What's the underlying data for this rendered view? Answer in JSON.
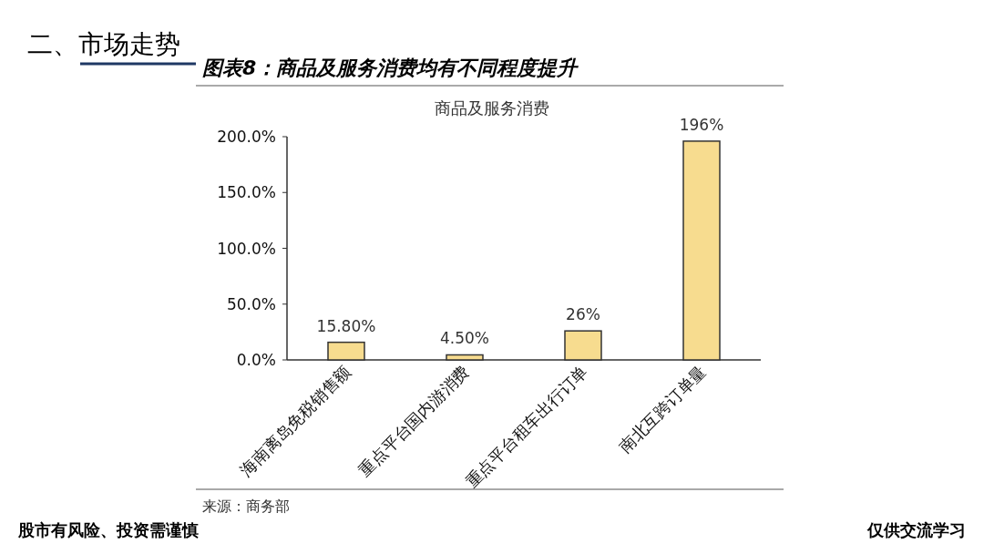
{
  "chart_data": {
    "type": "bar",
    "title": "图表8：商品及服务消费均有不同程度提升",
    "subtitle": "商品及服务消费",
    "categories": [
      "海南离岛免税销售额",
      "重点平台国内游消费",
      "重点平台租车出行订单",
      "南北互跨订单量"
    ],
    "values": [
      15.8,
      4.5,
      26,
      196
    ],
    "value_labels": [
      "15.80%",
      "4.50%",
      "26%",
      "196%"
    ],
    "color": "#f7dc8f",
    "ylim": [
      0,
      200
    ],
    "yticks": [
      {
        "value": 0,
        "label": "0.0%"
      },
      {
        "value": 50,
        "label": "50.0%"
      },
      {
        "value": 100,
        "label": "100.0%"
      },
      {
        "value": 150,
        "label": "150.0%"
      },
      {
        "value": 200,
        "label": "200.0%"
      }
    ],
    "annotations": [
      "二、市场走势",
      "来源：商务部",
      "股市有风险、投资需谨慎",
      "仅供交流学习"
    ]
  }
}
